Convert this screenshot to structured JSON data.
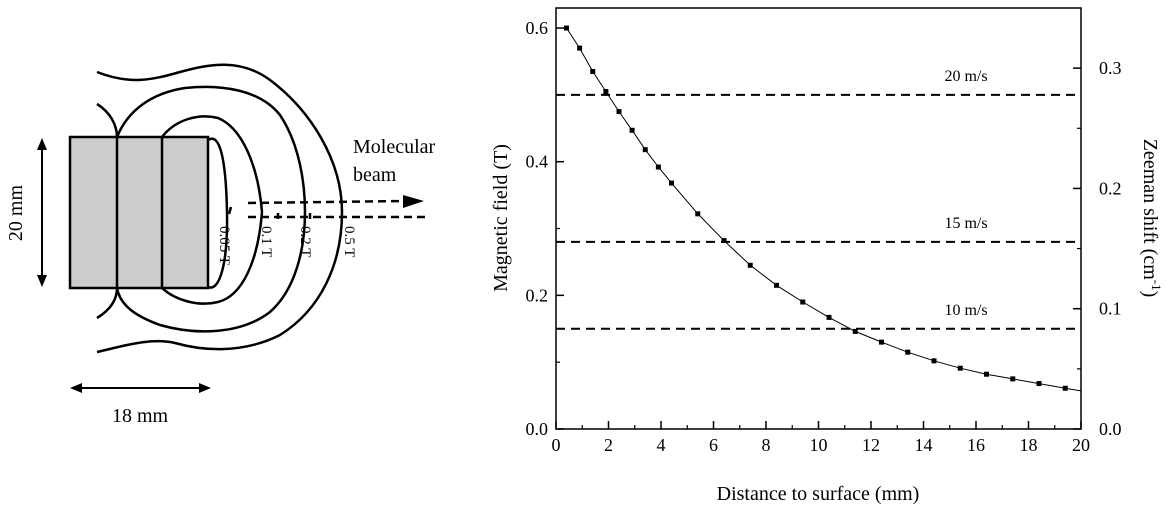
{
  "diagram": {
    "dimension_height": "20 mm",
    "dimension_width": "18 mm",
    "beam_label_line1": "Molecular",
    "beam_label_line2": "beam",
    "contours": [
      "0.05 T",
      "0.1 T",
      "0.2 T",
      "0.5 T"
    ],
    "magnet_color": "#cccccc"
  },
  "chart_data": {
    "type": "scatter",
    "xlabel": "Distance to surface (mm)",
    "ylabel": "Magnetic field (T)",
    "ylabel_right": "Zeeman shift (cm",
    "ylabel_right_sup": "-1",
    "ylabel_right_close": ")",
    "xlim": [
      0,
      20
    ],
    "ylim": [
      0,
      0.63
    ],
    "ylim_right": [
      0,
      0.35
    ],
    "xticks": [
      "0",
      "2",
      "4",
      "6",
      "8",
      "10",
      "12",
      "14",
      "16",
      "18",
      "20"
    ],
    "yticks": [
      "0.0",
      "0.2",
      "0.4",
      "0.6"
    ],
    "yticks_right": [
      "0.0",
      "0.1",
      "0.2",
      "0.3"
    ],
    "grid": false,
    "series": [
      {
        "x": [
          0.4,
          0.9,
          1.4,
          1.9,
          2.4,
          2.9,
          3.4,
          3.9,
          4.4,
          5.4,
          6.4,
          7.4,
          8.4,
          9.4,
          10.4,
          11.4,
          12.4,
          13.4,
          14.4,
          15.4,
          16.4,
          17.4,
          18.4,
          19.4
        ],
        "y": [
          0.6,
          0.57,
          0.535,
          0.505,
          0.475,
          0.447,
          0.418,
          0.392,
          0.368,
          0.322,
          0.282,
          0.245,
          0.215,
          0.19,
          0.167,
          0.146,
          0.13,
          0.115,
          0.102,
          0.091,
          0.082,
          0.075,
          0.068,
          0.061
        ]
      }
    ],
    "annotations": [
      {
        "label": "20 m/s",
        "y": 0.5
      },
      {
        "label": "15 m/s",
        "y": 0.28
      },
      {
        "label": "10 m/s",
        "y": 0.15
      }
    ]
  }
}
